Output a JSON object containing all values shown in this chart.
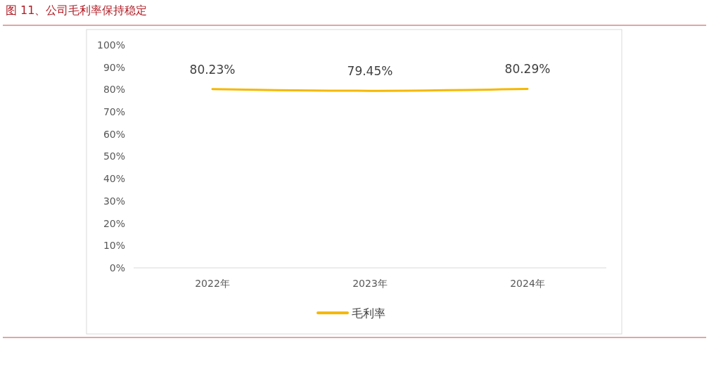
{
  "chart_data": {
    "type": "line",
    "title": "图 11、公司毛利率保持稳定",
    "categories": [
      "2022年",
      "2023年",
      "2024年"
    ],
    "series": [
      {
        "name": "毛利率",
        "color": "#f5b800",
        "values": [
          80.23,
          79.45,
          80.29
        ],
        "value_labels": [
          "80.23%",
          "79.45%",
          "80.29%"
        ]
      }
    ],
    "ylim": [
      0,
      100
    ],
    "yticks": [
      {
        "value": 0,
        "label": "0%"
      },
      {
        "value": 10,
        "label": "10%"
      },
      {
        "value": 20,
        "label": "20%"
      },
      {
        "value": 30,
        "label": "30%"
      },
      {
        "value": 40,
        "label": "40%"
      },
      {
        "value": 50,
        "label": "50%"
      },
      {
        "value": 60,
        "label": "60%"
      },
      {
        "value": 70,
        "label": "70%"
      },
      {
        "value": 80,
        "label": "80%"
      },
      {
        "value": 90,
        "label": "90%"
      },
      {
        "value": 100,
        "label": "100%"
      }
    ],
    "grid": false,
    "legend": "bottom",
    "marker": "none",
    "line_style": "solid"
  }
}
